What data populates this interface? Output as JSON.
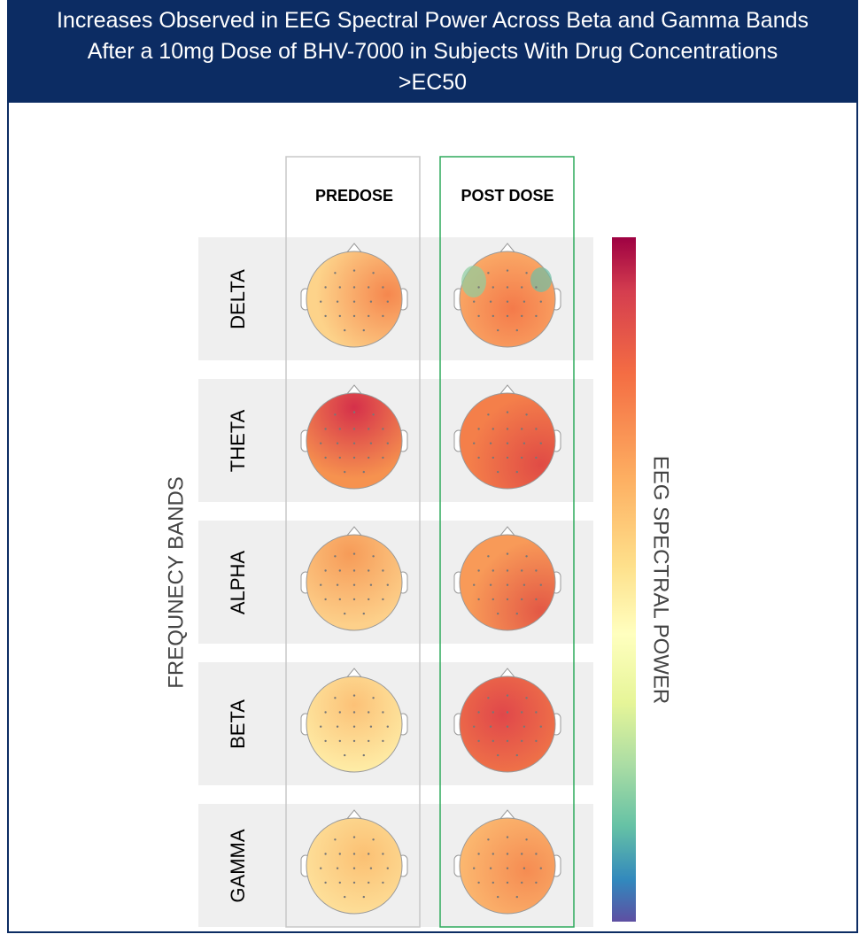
{
  "title": "Increases Observed in EEG Spectral Power Across Beta and Gamma Bands After a 10mg Dose of BHV-7000 in Subjects With Drug Concentrations >EC50",
  "columns": [
    "PREDOSE",
    "POST DOSE"
  ],
  "rows": [
    "DELTA",
    "THETA",
    "ALPHA",
    "BETA",
    "GAMMA"
  ],
  "y_axis_label": "FREQUNECY BANDS",
  "colorbar_label": "EEG SPECTRAL POWER"
}
